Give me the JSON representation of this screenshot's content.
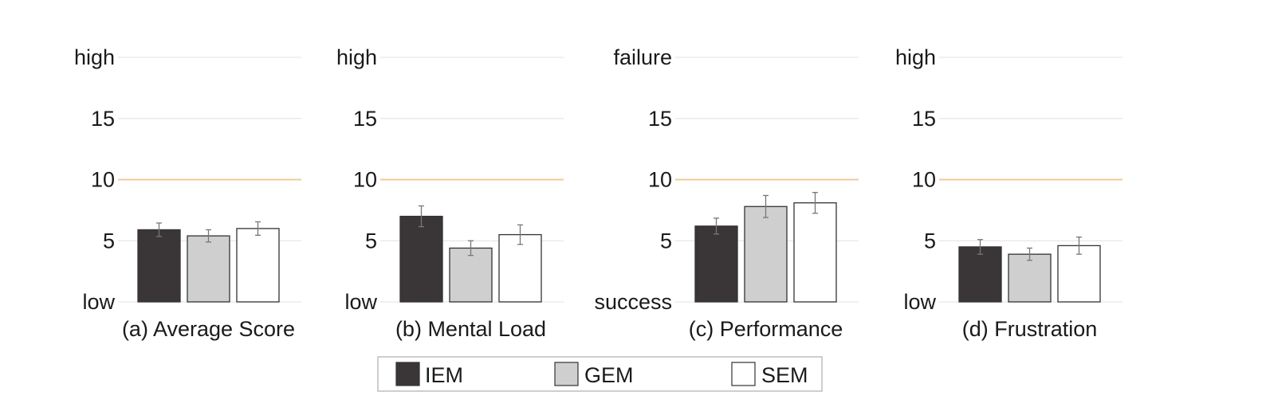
{
  "colors": {
    "IEM": "#3a3637",
    "GEM": "#cfcfcf",
    "SEM": "#ffffff",
    "highlight_gridline": "#f2c99a",
    "gridline": "#e6e6e6",
    "bar_stroke": "#333333",
    "error_bar": "#777777"
  },
  "legend": {
    "placement": "bottom-center",
    "entries": [
      {
        "key": "IEM",
        "label": "IEM"
      },
      {
        "key": "GEM",
        "label": "GEM"
      },
      {
        "key": "SEM",
        "label": "SEM"
      }
    ]
  },
  "chart_data": [
    {
      "type": "bar",
      "caption": "(a) Average Score",
      "categories": [
        "IEM",
        "GEM",
        "SEM"
      ],
      "values": [
        5.9,
        5.4,
        6.0
      ],
      "errors": [
        0.55,
        0.5,
        0.55
      ],
      "ylim": [
        0,
        20
      ],
      "yticks": [
        0,
        5,
        10,
        15,
        20
      ],
      "yticklabels": [
        "low",
        "5",
        "10",
        "15",
        "high"
      ],
      "highlight_y": 10,
      "grid": true
    },
    {
      "type": "bar",
      "caption": "(b) Mental Load",
      "categories": [
        "IEM",
        "GEM",
        "SEM"
      ],
      "values": [
        7.0,
        4.4,
        5.5
      ],
      "errors": [
        0.85,
        0.6,
        0.8
      ],
      "ylim": [
        0,
        20
      ],
      "yticks": [
        0,
        5,
        10,
        15,
        20
      ],
      "yticklabels": [
        "low",
        "5",
        "10",
        "15",
        "high"
      ],
      "highlight_y": 10,
      "grid": true
    },
    {
      "type": "bar",
      "caption": "(c) Performance",
      "categories": [
        "IEM",
        "GEM",
        "SEM"
      ],
      "values": [
        6.2,
        7.8,
        8.1
      ],
      "errors": [
        0.65,
        0.9,
        0.85
      ],
      "ylim": [
        0,
        20
      ],
      "yticks": [
        0,
        5,
        10,
        15,
        20
      ],
      "yticklabels": [
        "success",
        "5",
        "10",
        "15",
        "failure"
      ],
      "highlight_y": 10,
      "grid": true
    },
    {
      "type": "bar",
      "caption": "(d) Frustration",
      "categories": [
        "IEM",
        "GEM",
        "SEM"
      ],
      "values": [
        4.5,
        3.9,
        4.6
      ],
      "errors": [
        0.6,
        0.5,
        0.7
      ],
      "ylim": [
        0,
        20
      ],
      "yticks": [
        0,
        5,
        10,
        15,
        20
      ],
      "yticklabels": [
        "low",
        "5",
        "10",
        "15",
        "high"
      ],
      "highlight_y": 10,
      "grid": true
    }
  ]
}
